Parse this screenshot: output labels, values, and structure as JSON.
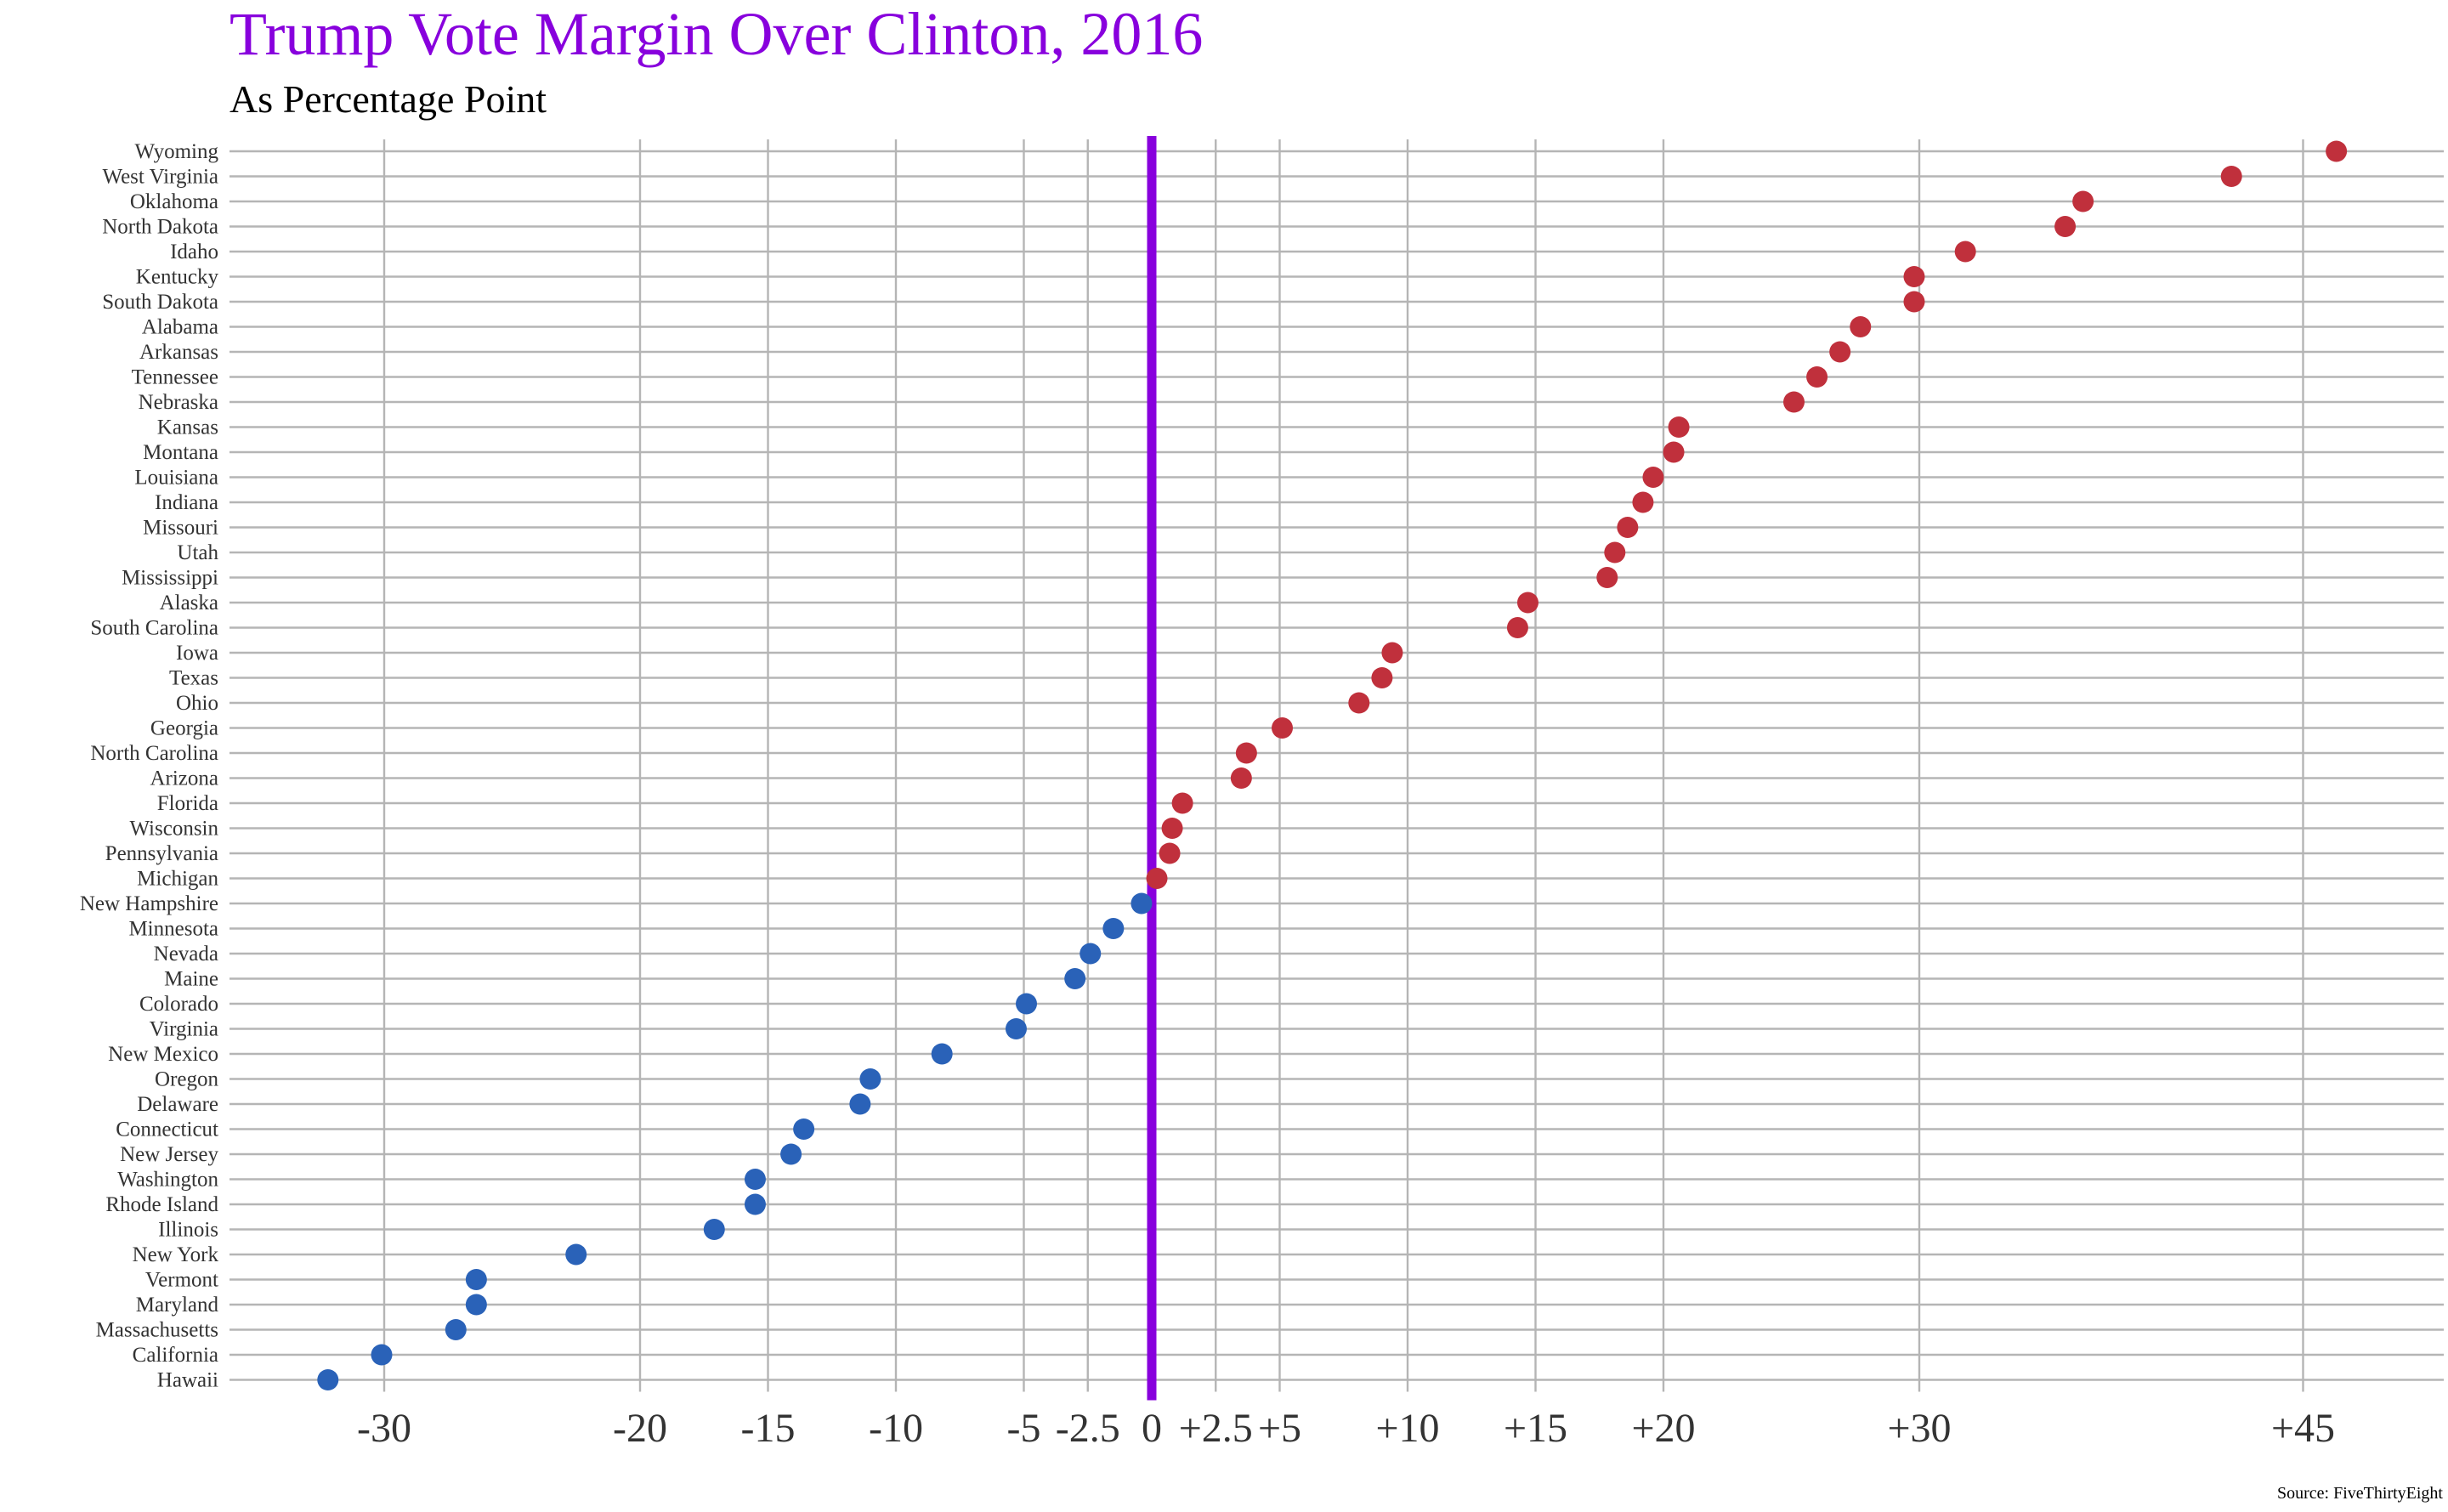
{
  "chart_data": {
    "type": "scatter",
    "title": "Trump Vote Margin Over Clinton, 2016",
    "subtitle": "As Percentage Point",
    "source": "Source: FiveThirtyEight",
    "xlabel": "",
    "ylabel": "",
    "xlim": [
      -35.5,
      49
    ],
    "x_ticks": [
      -30,
      -20,
      -15,
      -10,
      -5,
      -2.5,
      0,
      2.5,
      5,
      10,
      15,
      20,
      30,
      45
    ],
    "x_tick_labels": [
      "-30",
      "-20",
      "-15",
      "-10",
      "-5",
      "-2.5",
      "0",
      "+2.5",
      "+5",
      "+10",
      "+15",
      "+20",
      "+30",
      "+45"
    ],
    "reference_line": 0,
    "grid": true,
    "colors": {
      "title": "#8800dd",
      "trump": "#c0303c",
      "clinton": "#2a62b8",
      "zero_line": "#8800dd",
      "grid": "#b5b5b5"
    },
    "points": [
      {
        "state": "Wyoming",
        "margin": 46.3
      },
      {
        "state": "West Virginia",
        "margin": 42.2
      },
      {
        "state": "Oklahoma",
        "margin": 36.4
      },
      {
        "state": "North Dakota",
        "margin": 35.7
      },
      {
        "state": "Idaho",
        "margin": 31.8
      },
      {
        "state": "Kentucky",
        "margin": 29.8
      },
      {
        "state": "South Dakota",
        "margin": 29.8
      },
      {
        "state": "Alabama",
        "margin": 27.7
      },
      {
        "state": "Arkansas",
        "margin": 26.9
      },
      {
        "state": "Tennessee",
        "margin": 26.0
      },
      {
        "state": "Nebraska",
        "margin": 25.1
      },
      {
        "state": "Kansas",
        "margin": 20.6
      },
      {
        "state": "Montana",
        "margin": 20.4
      },
      {
        "state": "Louisiana",
        "margin": 19.6
      },
      {
        "state": "Indiana",
        "margin": 19.2
      },
      {
        "state": "Missouri",
        "margin": 18.6
      },
      {
        "state": "Utah",
        "margin": 18.1
      },
      {
        "state": "Mississippi",
        "margin": 17.8
      },
      {
        "state": "Alaska",
        "margin": 14.7
      },
      {
        "state": "South Carolina",
        "margin": 14.3
      },
      {
        "state": "Iowa",
        "margin": 9.4
      },
      {
        "state": "Texas",
        "margin": 9.0
      },
      {
        "state": "Ohio",
        "margin": 8.1
      },
      {
        "state": "Georgia",
        "margin": 5.1
      },
      {
        "state": "North Carolina",
        "margin": 3.7
      },
      {
        "state": "Arizona",
        "margin": 3.5
      },
      {
        "state": "Florida",
        "margin": 1.2
      },
      {
        "state": "Wisconsin",
        "margin": 0.8
      },
      {
        "state": "Pennsylvania",
        "margin": 0.7
      },
      {
        "state": "Michigan",
        "margin": 0.2
      },
      {
        "state": "New Hampshire",
        "margin": -0.4
      },
      {
        "state": "Minnesota",
        "margin": -1.5
      },
      {
        "state": "Nevada",
        "margin": -2.4
      },
      {
        "state": "Maine",
        "margin": -3.0
      },
      {
        "state": "Colorado",
        "margin": -4.9
      },
      {
        "state": "Virginia",
        "margin": -5.3
      },
      {
        "state": "New Mexico",
        "margin": -8.2
      },
      {
        "state": "Oregon",
        "margin": -11.0
      },
      {
        "state": "Delaware",
        "margin": -11.4
      },
      {
        "state": "Connecticut",
        "margin": -13.6
      },
      {
        "state": "New Jersey",
        "margin": -14.1
      },
      {
        "state": "Washington",
        "margin": -15.5
      },
      {
        "state": "Rhode Island",
        "margin": -15.5
      },
      {
        "state": "Illinois",
        "margin": -17.1
      },
      {
        "state": "New York",
        "margin": -22.5
      },
      {
        "state": "Vermont",
        "margin": -26.4
      },
      {
        "state": "Maryland",
        "margin": -26.4
      },
      {
        "state": "Massachusetts",
        "margin": -27.2
      },
      {
        "state": "California",
        "margin": -30.1
      },
      {
        "state": "Hawaii",
        "margin": -32.2
      }
    ]
  }
}
